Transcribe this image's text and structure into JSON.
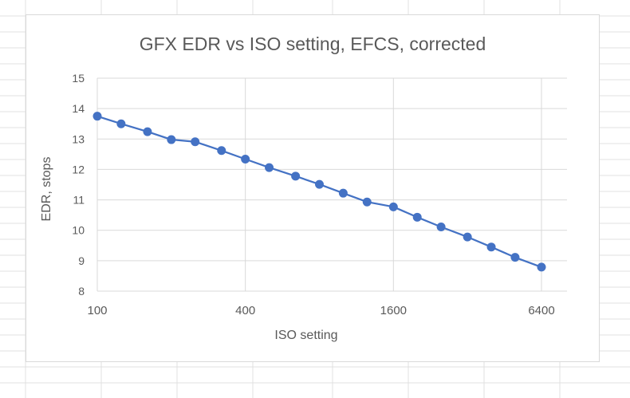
{
  "colors": {
    "series": "#4472c4",
    "gridline": "#d9d9d9",
    "text": "#595959",
    "cell_lines": "#e1e1e1"
  },
  "chart_data": {
    "type": "line",
    "title": "GFX EDR vs ISO setting, EFCS, corrected",
    "xlabel": "ISO setting",
    "ylabel": "EDR, stops",
    "x_scale": "log2",
    "x_ticks": [
      100,
      400,
      1600,
      6400
    ],
    "xlim": [
      100,
      6400
    ],
    "ylim": [
      8,
      15
    ],
    "y_ticks": [
      8,
      9,
      10,
      11,
      12,
      13,
      14,
      15
    ],
    "grid": true,
    "marker": "circle",
    "series": [
      {
        "x": [
          100,
          125,
          160,
          200,
          250,
          320,
          400,
          500,
          640,
          800,
          1000,
          1250,
          1600,
          2000,
          2500,
          3200,
          4000,
          5000,
          6400
        ],
        "y": [
          13.75,
          13.5,
          13.24,
          12.98,
          12.91,
          12.62,
          12.34,
          12.06,
          11.78,
          11.51,
          11.22,
          10.93,
          10.77,
          10.43,
          10.11,
          9.78,
          9.45,
          9.11,
          8.79
        ]
      }
    ]
  }
}
